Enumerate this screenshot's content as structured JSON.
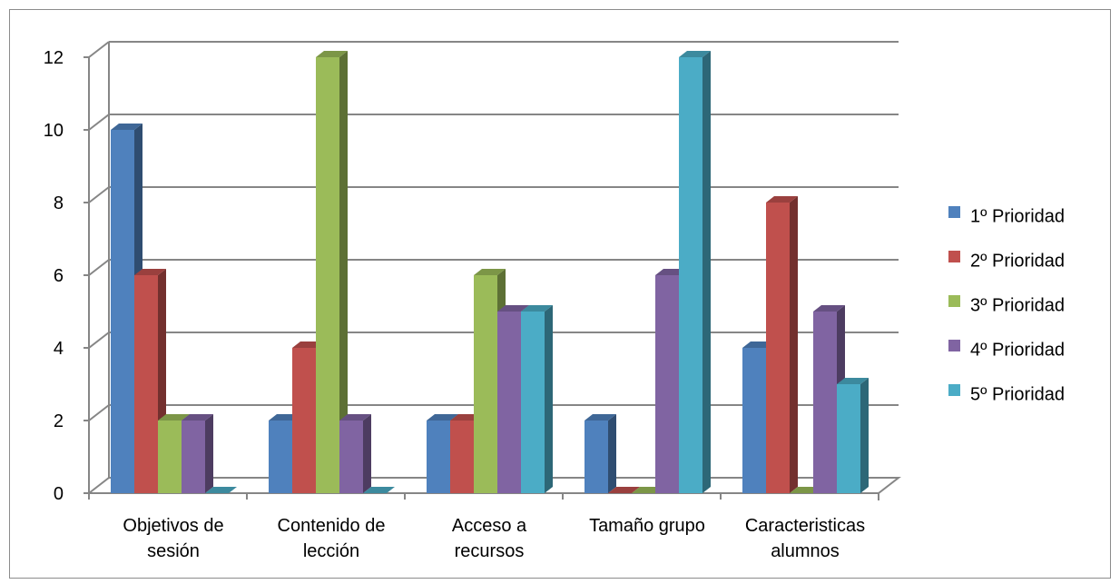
{
  "chart_data": {
    "type": "bar",
    "categories": [
      [
        "Objetivos de",
        "sesión"
      ],
      [
        "Contenido de",
        "lección"
      ],
      [
        "Acceso a",
        "recursos"
      ],
      [
        "Tamaño grupo"
      ],
      [
        "Caracteristicas",
        "alumnos"
      ]
    ],
    "series": [
      {
        "name": "1º Prioridad",
        "color": "#4F81BD",
        "values": [
          10,
          2,
          2,
          2,
          4
        ]
      },
      {
        "name": "2º Prioridad",
        "color": "#C0504D",
        "values": [
          6,
          4,
          2,
          0,
          8
        ]
      },
      {
        "name": "3º Prioridad",
        "color": "#9BBB59",
        "values": [
          2,
          12,
          6,
          0,
          0
        ]
      },
      {
        "name": "4º Prioridad",
        "color": "#8064A2",
        "values": [
          2,
          2,
          5,
          6,
          5
        ]
      },
      {
        "name": "5º Prioridad",
        "color": "#4BACC6",
        "values": [
          0,
          0,
          5,
          12,
          3
        ]
      }
    ],
    "y_ticks": [
      "0",
      "2",
      "4",
      "6",
      "8",
      "10",
      "12"
    ],
    "ylim": [
      0,
      12
    ],
    "grid": true,
    "legend": "right",
    "style": "3d-clustered-column"
  }
}
